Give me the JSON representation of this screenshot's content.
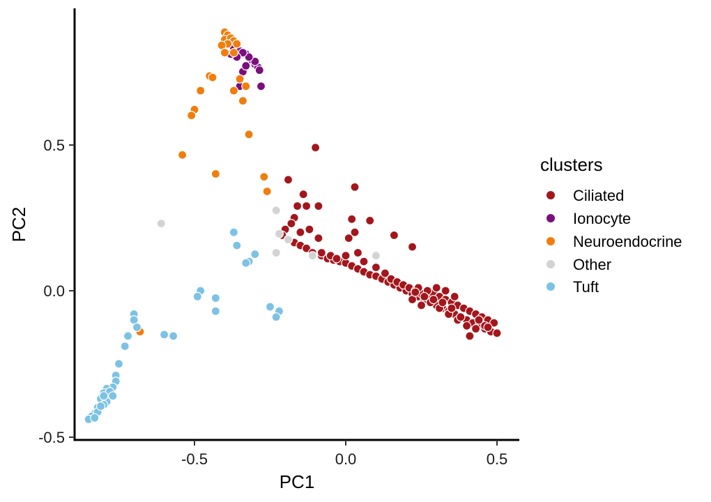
{
  "chart_data": {
    "type": "scatter",
    "xlabel": "PC1",
    "ylabel": "PC2",
    "xlim": [
      -0.91,
      0.58
    ],
    "ylim": [
      -0.51,
      0.97
    ],
    "xticks": [
      -0.5,
      0.0,
      0.5
    ],
    "yticks": [
      -0.5,
      0.0,
      0.5
    ],
    "xtick_labels": [
      "-0.5",
      "0.0",
      "0.5"
    ],
    "ytick_labels": [
      "-0.5",
      "0.0",
      "0.5"
    ],
    "grid": false,
    "legend": {
      "title": "clusters",
      "position": "right"
    },
    "series": [
      {
        "name": "Ciliated",
        "color": "#A3161C",
        "points": [
          [
            -0.1,
            0.49
          ],
          [
            0.03,
            0.355
          ],
          [
            -0.19,
            0.38
          ],
          [
            -0.14,
            0.33
          ],
          [
            -0.13,
            0.29
          ],
          [
            -0.16,
            0.29
          ],
          [
            -0.09,
            0.29
          ],
          [
            -0.17,
            0.25
          ],
          [
            -0.18,
            0.23
          ],
          [
            -0.15,
            0.2
          ],
          [
            -0.12,
            0.21
          ],
          [
            -0.09,
            0.18
          ],
          [
            0.02,
            0.245
          ],
          [
            0.08,
            0.24
          ],
          [
            0.16,
            0.19
          ],
          [
            0.22,
            0.15
          ],
          [
            0.03,
            0.2
          ],
          [
            0.01,
            0.18
          ],
          [
            -0.2,
            0.21
          ],
          [
            -0.21,
            0.19
          ],
          [
            -0.19,
            0.175
          ],
          [
            -0.17,
            0.165
          ],
          [
            -0.15,
            0.155
          ],
          [
            -0.13,
            0.145
          ],
          [
            -0.11,
            0.13
          ],
          [
            -0.08,
            0.12
          ],
          [
            -0.06,
            0.11
          ],
          [
            -0.04,
            0.105
          ],
          [
            -0.02,
            0.1
          ],
          [
            0.0,
            0.095
          ],
          [
            0.02,
            0.085
          ],
          [
            0.04,
            0.075
          ],
          [
            0.06,
            0.065
          ],
          [
            0.08,
            0.055
          ],
          [
            0.1,
            0.05
          ],
          [
            0.12,
            0.04
          ],
          [
            0.14,
            0.03
          ],
          [
            0.16,
            0.02
          ],
          [
            0.18,
            0.01
          ],
          [
            0.2,
            0.0
          ],
          [
            0.22,
            -0.01
          ],
          [
            0.24,
            -0.02
          ],
          [
            0.26,
            -0.03
          ],
          [
            0.28,
            -0.04
          ],
          [
            0.3,
            -0.05
          ],
          [
            0.32,
            -0.06
          ],
          [
            0.34,
            -0.07
          ],
          [
            0.36,
            -0.08
          ],
          [
            0.38,
            -0.09
          ],
          [
            0.4,
            -0.1
          ],
          [
            0.42,
            -0.11
          ],
          [
            0.44,
            -0.12
          ],
          [
            0.46,
            -0.13
          ],
          [
            0.48,
            -0.14
          ],
          [
            0.5,
            -0.145
          ],
          [
            -0.08,
            0.13
          ],
          [
            -0.05,
            0.12
          ],
          [
            -0.03,
            0.11
          ],
          [
            0.0,
            0.12
          ],
          [
            0.04,
            0.13
          ],
          [
            0.06,
            0.1
          ],
          [
            0.1,
            0.08
          ],
          [
            0.13,
            0.06
          ],
          [
            0.15,
            0.04
          ],
          [
            0.17,
            0.03
          ],
          [
            0.19,
            0.02
          ],
          [
            0.21,
            0.01
          ],
          [
            0.23,
            0.0
          ],
          [
            0.25,
            -0.01
          ],
          [
            0.27,
            -0.02
          ],
          [
            0.29,
            -0.01
          ],
          [
            0.31,
            -0.02
          ],
          [
            0.33,
            -0.03
          ],
          [
            0.35,
            -0.04
          ],
          [
            0.37,
            -0.05
          ],
          [
            0.39,
            -0.06
          ],
          [
            0.41,
            -0.07
          ],
          [
            0.43,
            -0.08
          ],
          [
            0.45,
            -0.09
          ],
          [
            0.47,
            -0.1
          ],
          [
            0.49,
            -0.11
          ],
          [
            0.3,
            0.01
          ],
          [
            0.33,
            0.0
          ],
          [
            0.36,
            -0.02
          ],
          [
            0.24,
            0.01
          ],
          [
            0.27,
            0.0
          ],
          [
            0.22,
            -0.03
          ],
          [
            0.25,
            -0.05
          ],
          [
            0.28,
            -0.04
          ],
          [
            0.31,
            -0.06
          ],
          [
            0.34,
            -0.08
          ],
          [
            0.37,
            -0.1
          ],
          [
            0.4,
            -0.12
          ],
          [
            0.43,
            -0.13
          ],
          [
            0.46,
            -0.12
          ],
          [
            0.41,
            -0.155
          ],
          [
            0.38,
            -0.09
          ],
          [
            0.44,
            -0.1
          ],
          [
            0.47,
            -0.125
          ],
          [
            0.35,
            -0.06
          ],
          [
            0.32,
            -0.04
          ],
          [
            0.29,
            -0.03
          ],
          [
            0.26,
            -0.02
          ],
          [
            0.23,
            -0.005
          ]
        ]
      },
      {
        "name": "Ionocyte",
        "color": "#7B0F7E",
        "points": [
          [
            -0.37,
            0.83
          ],
          [
            -0.35,
            0.82
          ],
          [
            -0.33,
            0.81
          ],
          [
            -0.31,
            0.79
          ],
          [
            -0.3,
            0.775
          ],
          [
            -0.29,
            0.765
          ],
          [
            -0.285,
            0.755
          ],
          [
            -0.3,
            0.785
          ],
          [
            -0.32,
            0.8
          ],
          [
            -0.34,
            0.815
          ],
          [
            -0.36,
            0.8
          ],
          [
            -0.38,
            0.81
          ],
          [
            -0.35,
            0.7
          ],
          [
            -0.34,
            0.75
          ],
          [
            -0.28,
            0.7
          ],
          [
            -0.33,
            0.77
          ]
        ]
      },
      {
        "name": "Neuroendocrine",
        "color": "#F17D0C",
        "points": [
          [
            -0.4,
            0.885
          ],
          [
            -0.39,
            0.875
          ],
          [
            -0.4,
            0.86
          ],
          [
            -0.38,
            0.865
          ],
          [
            -0.37,
            0.855
          ],
          [
            -0.36,
            0.845
          ],
          [
            -0.39,
            0.845
          ],
          [
            -0.41,
            0.84
          ],
          [
            -0.37,
            0.815
          ],
          [
            -0.4,
            0.815
          ],
          [
            -0.45,
            0.735
          ],
          [
            -0.44,
            0.73
          ],
          [
            -0.35,
            0.725
          ],
          [
            -0.33,
            0.7
          ],
          [
            -0.37,
            0.685
          ],
          [
            -0.48,
            0.685
          ],
          [
            -0.34,
            0.65
          ],
          [
            -0.5,
            0.62
          ],
          [
            -0.51,
            0.6
          ],
          [
            -0.32,
            0.535
          ],
          [
            -0.54,
            0.465
          ],
          [
            -0.43,
            0.4
          ],
          [
            -0.27,
            0.39
          ],
          [
            -0.26,
            0.34
          ],
          [
            -0.68,
            -0.14
          ]
        ]
      },
      {
        "name": "Other",
        "color": "#D3D3D3",
        "points": [
          [
            -0.61,
            0.23
          ],
          [
            -0.23,
            0.275
          ],
          [
            -0.22,
            0.195
          ],
          [
            -0.19,
            0.175
          ],
          [
            -0.23,
            0.13
          ],
          [
            -0.11,
            0.12
          ],
          [
            0.1,
            0.12
          ]
        ]
      },
      {
        "name": "Tuft",
        "color": "#7CC2E4",
        "points": [
          [
            -0.37,
            0.2
          ],
          [
            -0.36,
            0.155
          ],
          [
            -0.32,
            0.1
          ],
          [
            -0.3,
            0.125
          ],
          [
            -0.33,
            0.095
          ],
          [
            -0.48,
            0.0
          ],
          [
            -0.49,
            -0.02
          ],
          [
            -0.43,
            -0.025
          ],
          [
            -0.43,
            -0.07
          ],
          [
            -0.25,
            -0.055
          ],
          [
            -0.22,
            -0.07
          ],
          [
            -0.23,
            -0.09
          ],
          [
            -0.7,
            -0.08
          ],
          [
            -0.7,
            -0.1
          ],
          [
            -0.69,
            -0.125
          ],
          [
            -0.72,
            -0.155
          ],
          [
            -0.73,
            -0.19
          ],
          [
            -0.6,
            -0.15
          ],
          [
            -0.57,
            -0.155
          ],
          [
            -0.75,
            -0.25
          ],
          [
            -0.76,
            -0.29
          ],
          [
            -0.76,
            -0.31
          ],
          [
            -0.77,
            -0.33
          ],
          [
            -0.79,
            -0.335
          ],
          [
            -0.8,
            -0.35
          ],
          [
            -0.81,
            -0.37
          ],
          [
            -0.78,
            -0.36
          ],
          [
            -0.79,
            -0.38
          ],
          [
            -0.8,
            -0.39
          ],
          [
            -0.82,
            -0.4
          ],
          [
            -0.83,
            -0.42
          ],
          [
            -0.84,
            -0.43
          ],
          [
            -0.85,
            -0.44
          ],
          [
            -0.82,
            -0.415
          ],
          [
            -0.81,
            -0.395
          ],
          [
            -0.78,
            -0.345
          ],
          [
            -0.77,
            -0.36
          ],
          [
            -0.8,
            -0.36
          ],
          [
            -0.83,
            -0.435
          ]
        ]
      }
    ]
  }
}
